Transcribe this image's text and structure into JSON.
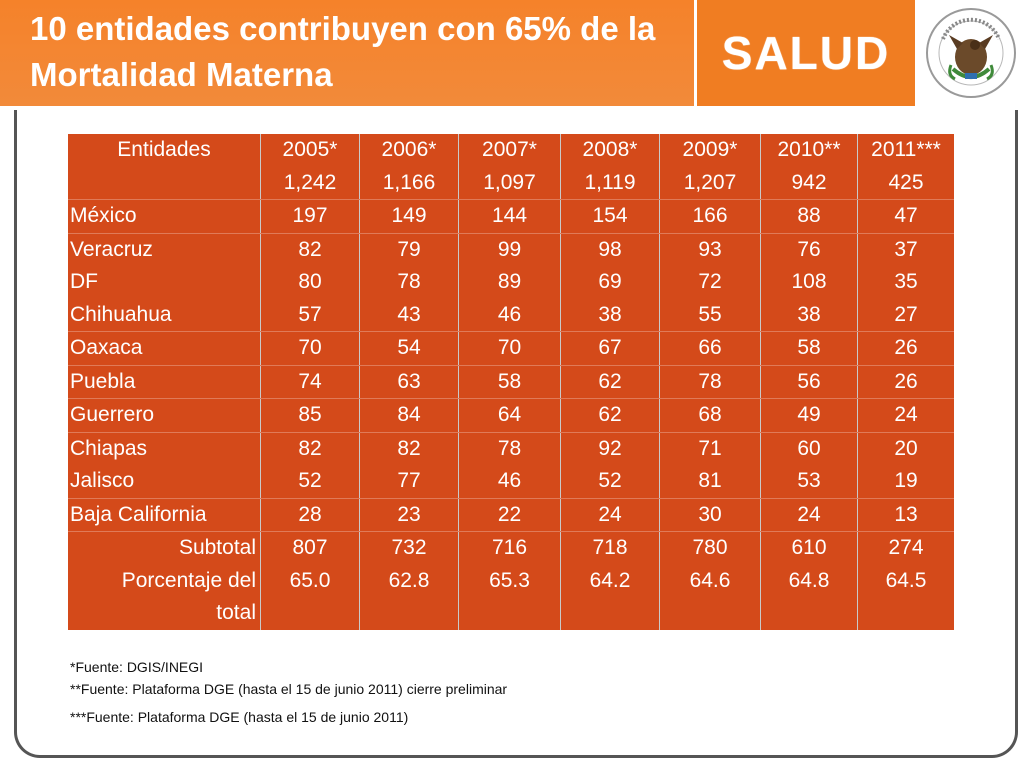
{
  "header": {
    "title_line1": "10 entidades contribuyen con 65% de la",
    "title_line2": "Mortalidad Materna",
    "salud": "SALUD",
    "seal_text": "ESTADOS UNIDOS MEXICANOS"
  },
  "table": {
    "header_label": "Entidades",
    "years": [
      "2005*",
      "2006*",
      "2007*",
      "2008*",
      "2009*",
      "2010**",
      "2011***"
    ],
    "totals": [
      "1,242",
      "1,166",
      "1,097",
      "1,119",
      "1,207",
      "942",
      "425"
    ],
    "rows": [
      {
        "name": "México",
        "values": [
          "197",
          "149",
          "144",
          "154",
          "166",
          "88",
          "47"
        ]
      },
      {
        "name": "Veracruz",
        "values": [
          "82",
          "79",
          "99",
          "98",
          "93",
          "76",
          "37"
        ]
      },
      {
        "name": "DF",
        "values": [
          "80",
          "78",
          "89",
          "69",
          "72",
          "108",
          "35"
        ]
      },
      {
        "name": "Chihuahua",
        "values": [
          "57",
          "43",
          "46",
          "38",
          "55",
          "38",
          "27"
        ]
      },
      {
        "name": "Oaxaca",
        "values": [
          "70",
          "54",
          "70",
          "67",
          "66",
          "58",
          "26"
        ]
      },
      {
        "name": "Puebla",
        "values": [
          "74",
          "63",
          "58",
          "62",
          "78",
          "56",
          "26"
        ]
      },
      {
        "name": "Guerrero",
        "values": [
          "85",
          "84",
          "64",
          "62",
          "68",
          "49",
          "24"
        ]
      },
      {
        "name": "Chiapas",
        "values": [
          "82",
          "82",
          "78",
          "92",
          "71",
          "60",
          "20"
        ]
      },
      {
        "name": "Jalisco",
        "values": [
          "52",
          "77",
          "46",
          "52",
          "81",
          "53",
          "19"
        ]
      },
      {
        "name": "Baja California",
        "values": [
          "28",
          "23",
          "22",
          "24",
          "30",
          "24",
          "13"
        ]
      }
    ],
    "subtotal": {
      "label": "Subtotal",
      "values": [
        "807",
        "732",
        "716",
        "718",
        "780",
        "610",
        "274"
      ]
    },
    "percent": {
      "label_line1": "Porcentaje del",
      "label_line2": "total",
      "values": [
        "65.0",
        "62.8",
        "65.3",
        "64.2",
        "64.6",
        "64.8",
        "64.5"
      ]
    }
  },
  "notes": [
    "*Fuente: DGIS/INEGI",
    "**Fuente: Plataforma DGE (hasta el  15 de junio 2011) cierre preliminar",
    "***Fuente: Plataforma DGE (hasta el  15 de junio 2011)"
  ],
  "colors": {
    "header_orange": "#f5822a",
    "table_red": "#d44a1a"
  }
}
